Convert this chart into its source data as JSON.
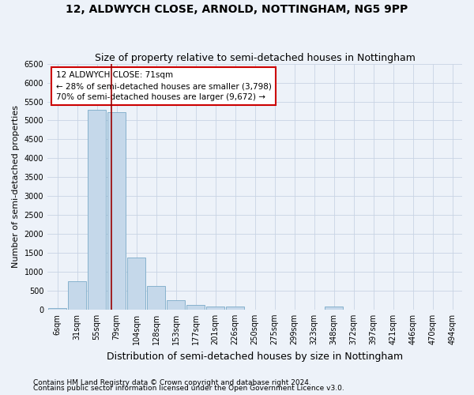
{
  "title": "12, ALDWYCH CLOSE, ARNOLD, NOTTINGHAM, NG5 9PP",
  "subtitle": "Size of property relative to semi-detached houses in Nottingham",
  "xlabel": "Distribution of semi-detached houses by size in Nottingham",
  "ylabel": "Number of semi-detached properties",
  "categories": [
    "6sqm",
    "31sqm",
    "55sqm",
    "79sqm",
    "104sqm",
    "128sqm",
    "153sqm",
    "177sqm",
    "201sqm",
    "226sqm",
    "250sqm",
    "275sqm",
    "299sqm",
    "323sqm",
    "348sqm",
    "372sqm",
    "397sqm",
    "421sqm",
    "446sqm",
    "470sqm",
    "494sqm"
  ],
  "values": [
    30,
    750,
    5280,
    5220,
    1370,
    620,
    240,
    130,
    80,
    70,
    0,
    0,
    0,
    0,
    70,
    0,
    0,
    0,
    0,
    0,
    0
  ],
  "bar_color": "#c5d8ea",
  "bar_edge_color": "#7aaac8",
  "vline_color": "#990000",
  "vline_pos": 2.72,
  "annotation_title": "12 ALDWYCH CLOSE: 71sqm",
  "annotation_line1": "← 28% of semi-detached houses are smaller (3,798)",
  "annotation_line2": "70% of semi-detached houses are larger (9,672) →",
  "annotation_box_color": "#ffffff",
  "annotation_box_edge_color": "#cc0000",
  "grid_color": "#c8d4e4",
  "background_color": "#edf2f9",
  "footer1": "Contains HM Land Registry data © Crown copyright and database right 2024.",
  "footer2": "Contains public sector information licensed under the Open Government Licence v3.0.",
  "ylim": [
    0,
    6500
  ],
  "title_fontsize": 10,
  "subtitle_fontsize": 9,
  "tick_fontsize": 7,
  "ylabel_fontsize": 8,
  "xlabel_fontsize": 9,
  "footer_fontsize": 6.5
}
